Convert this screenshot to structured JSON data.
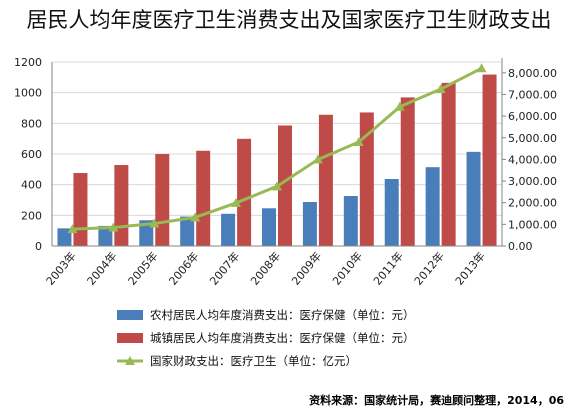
{
  "title": "居民人均年度医疗卫生消费支出及国家医疗卫生财政支出",
  "source": "资料来源：国家统计局，赛迪顾问整理，2014，06",
  "colors": {
    "rural": "#4a7ebb",
    "urban": "#be4b48",
    "fiscal": "#98b954",
    "axis": "#868686"
  },
  "chart_data": {
    "type": "bar",
    "categories": [
      "2003年",
      "2004年",
      "2005年",
      "2006年",
      "2007年",
      "2008年",
      "2009年",
      "2010年",
      "2011年",
      "2012年",
      "2013年"
    ],
    "series": [
      {
        "name": "农村居民人均年度消费支出：医疗保健（单位：元）",
        "type": "bar",
        "axis": "left",
        "values": [
          115,
          131,
          168,
          192,
          210,
          246,
          287,
          326,
          437,
          514,
          614
        ]
      },
      {
        "name": "城镇居民人均年度消费支出：医疗保健（单位：元）",
        "type": "bar",
        "axis": "left",
        "values": [
          476,
          528,
          600,
          621,
          699,
          786,
          856,
          871,
          969,
          1064,
          1118
        ]
      },
      {
        "name": "国家财政支出：医疗卫生（单位：亿元）",
        "type": "line",
        "axis": "right",
        "values": [
          778,
          855,
          1037,
          1321,
          1990,
          2757,
          3994,
          4804,
          6430,
          7245,
          8209
        ]
      }
    ],
    "y_left": {
      "ylim": [
        0,
        1200
      ],
      "ticks": [
        "0",
        "200",
        "400",
        "600",
        "800",
        "1000",
        "1200"
      ]
    },
    "y_right": {
      "ylim": [
        0,
        8500
      ],
      "ticks": [
        "0.00",
        "1,000.00",
        "2,000.00",
        "3,000.00",
        "4,000.00",
        "5,000.00",
        "6,000.00",
        "7,000.00",
        "8,000.00"
      ]
    },
    "grid": true,
    "legend_position": "bottom"
  }
}
